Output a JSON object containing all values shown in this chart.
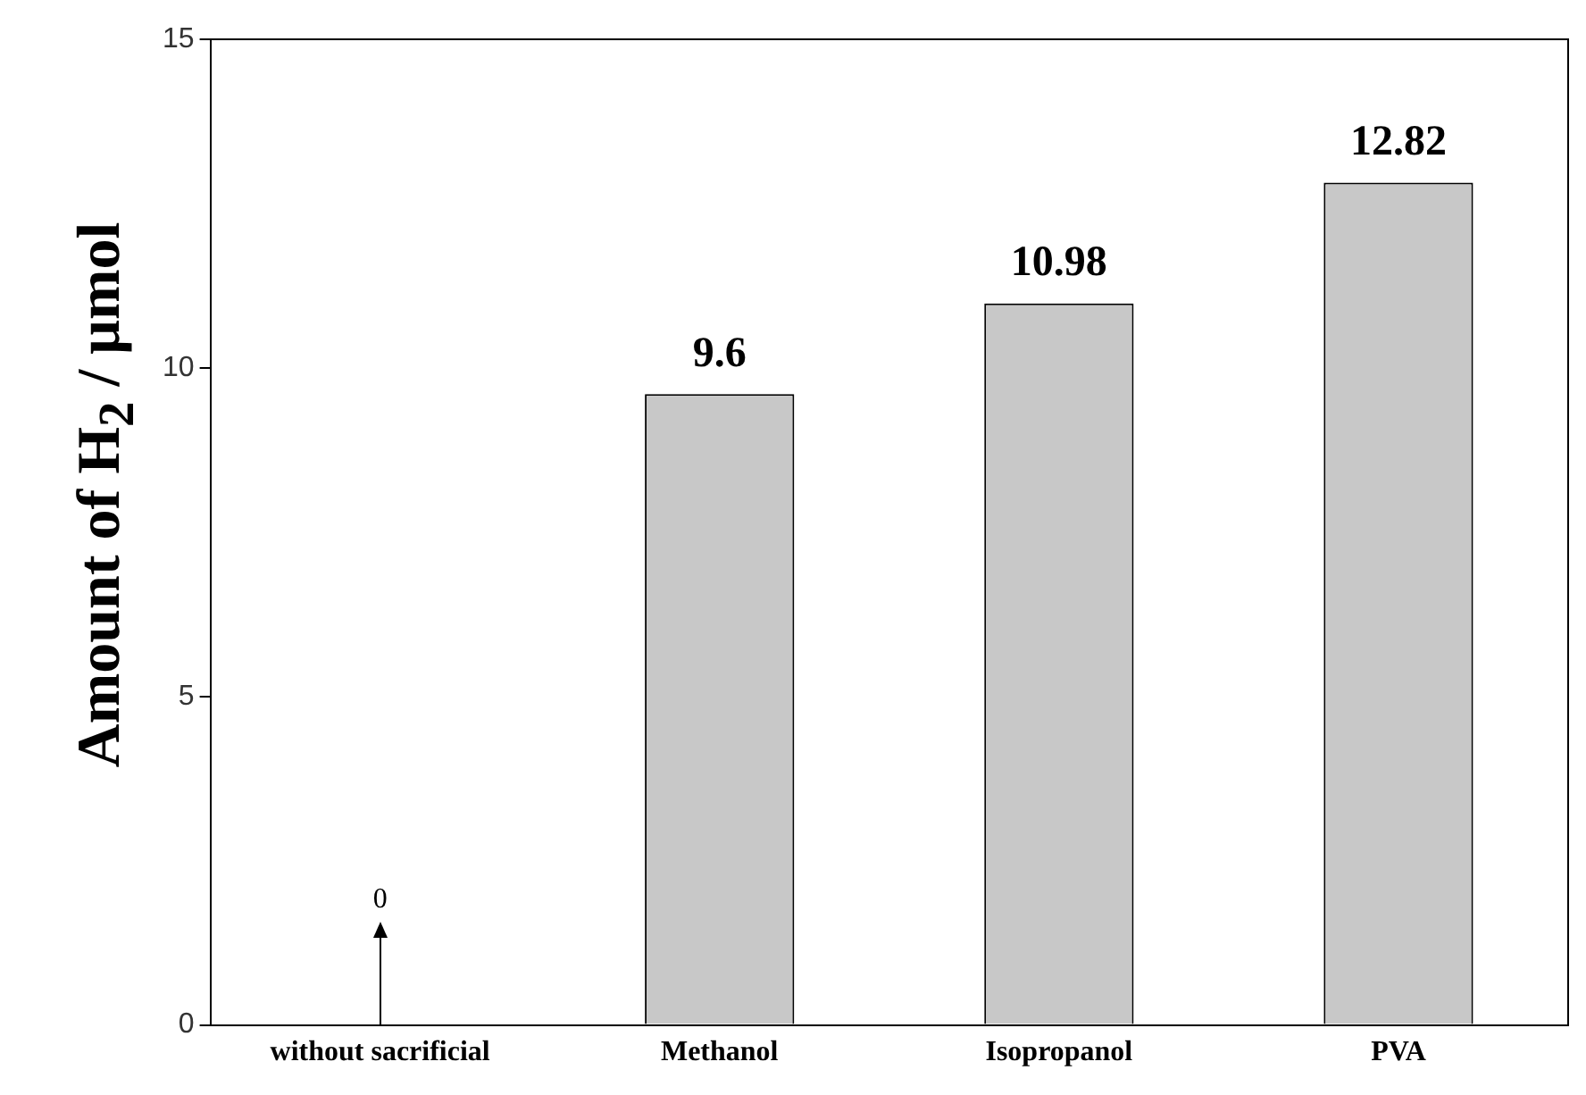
{
  "chart_data": {
    "type": "bar",
    "ylabel": "Amount of H$_{2}$ / μmol",
    "categories": [
      "without sacrificial",
      "Methanol",
      "Isopropanol",
      "PVA"
    ],
    "values": [
      0,
      9.6,
      10.98,
      12.82
    ],
    "color": "#c8c8c8",
    "value_labels": [
      null,
      "9.6",
      "10.98",
      "12.82"
    ],
    "annotations": [
      {
        "text": "0",
        "x": "without sacrificial",
        "y": 0
      }
    ],
    "ylim": [
      0,
      15
    ],
    "yticks": [
      0,
      5,
      10,
      15
    ],
    "grid": false,
    "legend": false
  }
}
